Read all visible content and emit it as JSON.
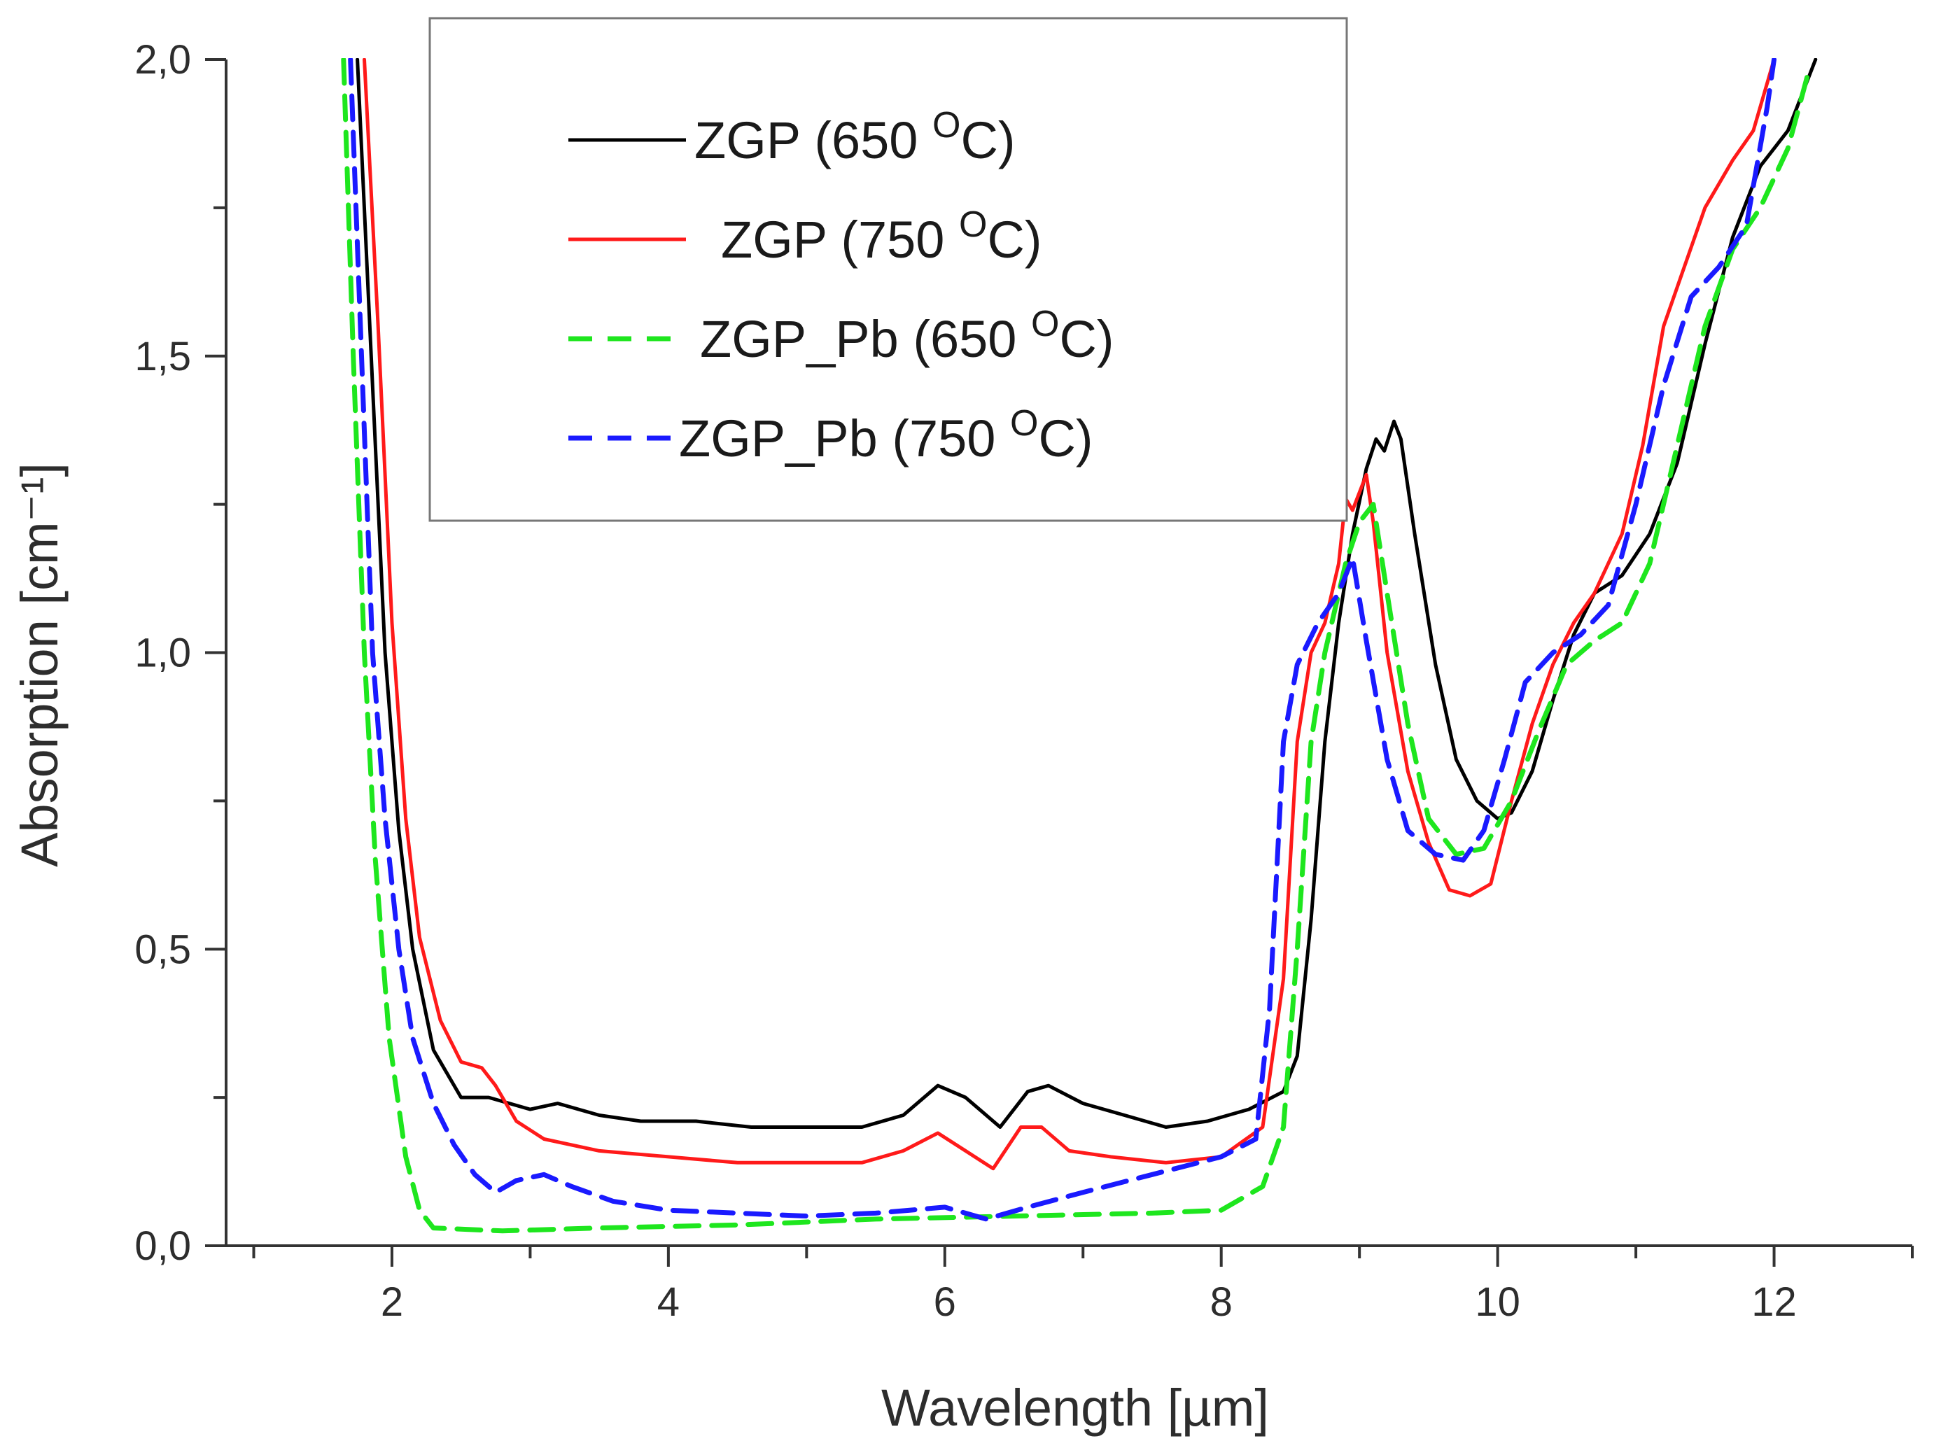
{
  "chart_data": {
    "type": "line",
    "title": "",
    "xlabel": "Wavelength [µm]",
    "ylabel": "Absorption [cm⁻¹]",
    "xlim": [
      0.8,
      13.0
    ],
    "ylim": [
      0.0,
      2.0
    ],
    "xticks": [
      2,
      4,
      6,
      8,
      10,
      12
    ],
    "xtick_labels": [
      "2",
      "4",
      "6",
      "8",
      "10",
      "12"
    ],
    "x_minor_step": 1,
    "yticks": [
      0.0,
      0.5,
      1.0,
      1.5,
      2.0
    ],
    "ytick_labels": [
      "0,0",
      "0,5",
      "1,0",
      "1,5",
      "2,0"
    ],
    "y_minor_step": 0.25,
    "grid": false,
    "legend_position": "top-left-center",
    "series": [
      {
        "name": "ZGP (650 °C)",
        "label_main": "ZGP (650 ",
        "label_sup": "O",
        "label_end": "C)",
        "color": "#000000",
        "dash": "solid",
        "points": [
          [
            1.75,
            2.0
          ],
          [
            1.85,
            1.5
          ],
          [
            1.95,
            1.0
          ],
          [
            2.05,
            0.7
          ],
          [
            2.15,
            0.5
          ],
          [
            2.3,
            0.33
          ],
          [
            2.5,
            0.25
          ],
          [
            2.7,
            0.25
          ],
          [
            3.0,
            0.23
          ],
          [
            3.2,
            0.24
          ],
          [
            3.5,
            0.22
          ],
          [
            3.8,
            0.21
          ],
          [
            4.2,
            0.21
          ],
          [
            4.6,
            0.2
          ],
          [
            5.0,
            0.2
          ],
          [
            5.4,
            0.2
          ],
          [
            5.7,
            0.22
          ],
          [
            5.95,
            0.27
          ],
          [
            6.15,
            0.25
          ],
          [
            6.4,
            0.2
          ],
          [
            6.6,
            0.26
          ],
          [
            6.75,
            0.27
          ],
          [
            7.0,
            0.24
          ],
          [
            7.3,
            0.22
          ],
          [
            7.6,
            0.2
          ],
          [
            7.9,
            0.21
          ],
          [
            8.2,
            0.23
          ],
          [
            8.45,
            0.26
          ],
          [
            8.55,
            0.32
          ],
          [
            8.65,
            0.55
          ],
          [
            8.75,
            0.85
          ],
          [
            8.85,
            1.05
          ],
          [
            8.95,
            1.2
          ],
          [
            9.05,
            1.31
          ],
          [
            9.12,
            1.36
          ],
          [
            9.18,
            1.34
          ],
          [
            9.25,
            1.39
          ],
          [
            9.3,
            1.36
          ],
          [
            9.4,
            1.2
          ],
          [
            9.55,
            0.98
          ],
          [
            9.7,
            0.82
          ],
          [
            9.85,
            0.75
          ],
          [
            10.0,
            0.72
          ],
          [
            10.1,
            0.73
          ],
          [
            10.25,
            0.8
          ],
          [
            10.4,
            0.92
          ],
          [
            10.55,
            1.03
          ],
          [
            10.7,
            1.1
          ],
          [
            10.9,
            1.13
          ],
          [
            11.1,
            1.2
          ],
          [
            11.3,
            1.32
          ],
          [
            11.5,
            1.52
          ],
          [
            11.7,
            1.7
          ],
          [
            11.9,
            1.82
          ],
          [
            12.1,
            1.88
          ],
          [
            12.3,
            2.0
          ]
        ]
      },
      {
        "name": "ZGP (750 °C)",
        "label_main": "ZGP (750 ",
        "label_sup": "O",
        "label_end": "C)",
        "color": "#ff1a1a",
        "dash": "solid",
        "points": [
          [
            1.8,
            2.0
          ],
          [
            1.9,
            1.55
          ],
          [
            2.0,
            1.05
          ],
          [
            2.1,
            0.72
          ],
          [
            2.2,
            0.52
          ],
          [
            2.35,
            0.38
          ],
          [
            2.5,
            0.31
          ],
          [
            2.65,
            0.3
          ],
          [
            2.75,
            0.27
          ],
          [
            2.9,
            0.21
          ],
          [
            3.1,
            0.18
          ],
          [
            3.5,
            0.16
          ],
          [
            4.0,
            0.15
          ],
          [
            4.5,
            0.14
          ],
          [
            5.0,
            0.14
          ],
          [
            5.4,
            0.14
          ],
          [
            5.7,
            0.16
          ],
          [
            5.95,
            0.19
          ],
          [
            6.15,
            0.16
          ],
          [
            6.35,
            0.13
          ],
          [
            6.55,
            0.2
          ],
          [
            6.7,
            0.2
          ],
          [
            6.9,
            0.16
          ],
          [
            7.2,
            0.15
          ],
          [
            7.6,
            0.14
          ],
          [
            8.0,
            0.15
          ],
          [
            8.3,
            0.2
          ],
          [
            8.45,
            0.45
          ],
          [
            8.55,
            0.85
          ],
          [
            8.65,
            1.0
          ],
          [
            8.75,
            1.05
          ],
          [
            8.85,
            1.15
          ],
          [
            8.9,
            1.26
          ],
          [
            8.95,
            1.24
          ],
          [
            9.05,
            1.3
          ],
          [
            9.1,
            1.22
          ],
          [
            9.2,
            1.0
          ],
          [
            9.35,
            0.8
          ],
          [
            9.5,
            0.68
          ],
          [
            9.65,
            0.6
          ],
          [
            9.8,
            0.59
          ],
          [
            9.95,
            0.61
          ],
          [
            10.1,
            0.75
          ],
          [
            10.25,
            0.88
          ],
          [
            10.4,
            0.98
          ],
          [
            10.55,
            1.05
          ],
          [
            10.7,
            1.1
          ],
          [
            10.9,
            1.2
          ],
          [
            11.05,
            1.35
          ],
          [
            11.2,
            1.55
          ],
          [
            11.35,
            1.65
          ],
          [
            11.5,
            1.75
          ],
          [
            11.7,
            1.83
          ],
          [
            11.85,
            1.88
          ],
          [
            12.0,
            2.0
          ]
        ]
      },
      {
        "name": "ZGP_Pb (650 °C)",
        "label_main": "ZGP_Pb (650 ",
        "label_sup": "O",
        "label_end": "C)",
        "color": "#1ee61e",
        "dash": "dashed",
        "points": [
          [
            1.65,
            2.0
          ],
          [
            1.72,
            1.5
          ],
          [
            1.8,
            1.0
          ],
          [
            1.88,
            0.65
          ],
          [
            1.98,
            0.35
          ],
          [
            2.1,
            0.15
          ],
          [
            2.2,
            0.06
          ],
          [
            2.3,
            0.03
          ],
          [
            2.8,
            0.025
          ],
          [
            3.5,
            0.03
          ],
          [
            4.5,
            0.035
          ],
          [
            5.5,
            0.045
          ],
          [
            6.5,
            0.05
          ],
          [
            7.5,
            0.055
          ],
          [
            8.0,
            0.06
          ],
          [
            8.3,
            0.1
          ],
          [
            8.45,
            0.2
          ],
          [
            8.55,
            0.5
          ],
          [
            8.65,
            0.85
          ],
          [
            8.75,
            1.0
          ],
          [
            8.9,
            1.15
          ],
          [
            9.0,
            1.22
          ],
          [
            9.1,
            1.25
          ],
          [
            9.2,
            1.1
          ],
          [
            9.35,
            0.88
          ],
          [
            9.5,
            0.72
          ],
          [
            9.7,
            0.66
          ],
          [
            9.9,
            0.67
          ],
          [
            10.1,
            0.75
          ],
          [
            10.3,
            0.87
          ],
          [
            10.5,
            0.98
          ],
          [
            10.7,
            1.02
          ],
          [
            10.9,
            1.05
          ],
          [
            11.1,
            1.15
          ],
          [
            11.3,
            1.35
          ],
          [
            11.5,
            1.55
          ],
          [
            11.7,
            1.68
          ],
          [
            11.9,
            1.75
          ],
          [
            12.1,
            1.85
          ],
          [
            12.25,
            1.98
          ]
        ]
      },
      {
        "name": "ZGP_Pb (750 °C)",
        "label_main": "ZGP_Pb (750 ",
        "label_sup": "O",
        "label_end": "C)",
        "color": "#1a1aff",
        "dash": "dashed",
        "points": [
          [
            1.7,
            2.0
          ],
          [
            1.78,
            1.5
          ],
          [
            1.86,
            1.0
          ],
          [
            1.95,
            0.72
          ],
          [
            2.05,
            0.5
          ],
          [
            2.15,
            0.35
          ],
          [
            2.3,
            0.24
          ],
          [
            2.45,
            0.17
          ],
          [
            2.6,
            0.12
          ],
          [
            2.75,
            0.09
          ],
          [
            2.9,
            0.11
          ],
          [
            3.1,
            0.12
          ],
          [
            3.3,
            0.1
          ],
          [
            3.6,
            0.075
          ],
          [
            4.0,
            0.06
          ],
          [
            4.5,
            0.055
          ],
          [
            5.0,
            0.05
          ],
          [
            5.5,
            0.055
          ],
          [
            6.0,
            0.065
          ],
          [
            6.3,
            0.045
          ],
          [
            6.6,
            0.065
          ],
          [
            7.0,
            0.09
          ],
          [
            7.5,
            0.12
          ],
          [
            8.0,
            0.15
          ],
          [
            8.25,
            0.18
          ],
          [
            8.35,
            0.4
          ],
          [
            8.45,
            0.85
          ],
          [
            8.55,
            0.98
          ],
          [
            8.7,
            1.05
          ],
          [
            8.85,
            1.1
          ],
          [
            8.95,
            1.16
          ],
          [
            9.05,
            1.02
          ],
          [
            9.2,
            0.82
          ],
          [
            9.35,
            0.7
          ],
          [
            9.55,
            0.66
          ],
          [
            9.75,
            0.65
          ],
          [
            9.9,
            0.7
          ],
          [
            10.05,
            0.82
          ],
          [
            10.2,
            0.95
          ],
          [
            10.4,
            1.0
          ],
          [
            10.6,
            1.03
          ],
          [
            10.8,
            1.08
          ],
          [
            11.0,
            1.25
          ],
          [
            11.2,
            1.45
          ],
          [
            11.4,
            1.6
          ],
          [
            11.6,
            1.65
          ],
          [
            11.8,
            1.72
          ],
          [
            11.95,
            1.92
          ],
          [
            12.0,
            2.0
          ]
        ]
      }
    ]
  }
}
